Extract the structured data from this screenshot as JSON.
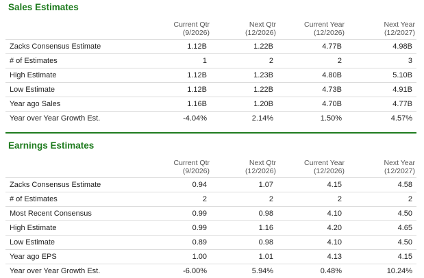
{
  "sales": {
    "title": "Sales Estimates",
    "columns": [
      {
        "line1": "Current Qtr",
        "line2": "(9/2026)"
      },
      {
        "line1": "Next Qtr",
        "line2": "(12/2026)"
      },
      {
        "line1": "Current Year",
        "line2": "(12/2026)"
      },
      {
        "line1": "Next Year",
        "line2": "(12/2027)"
      }
    ],
    "rows": [
      {
        "label": "Zacks Consensus Estimate",
        "values": [
          "1.12B",
          "1.22B",
          "4.77B",
          "4.98B"
        ]
      },
      {
        "label": "# of Estimates",
        "values": [
          "1",
          "2",
          "2",
          "3"
        ]
      },
      {
        "label": "High Estimate",
        "values": [
          "1.12B",
          "1.23B",
          "4.80B",
          "5.10B"
        ]
      },
      {
        "label": "Low Estimate",
        "values": [
          "1.12B",
          "1.22B",
          "4.73B",
          "4.91B"
        ]
      },
      {
        "label": "Year ago Sales",
        "values": [
          "1.16B",
          "1.20B",
          "4.70B",
          "4.77B"
        ]
      },
      {
        "label": "Year over Year Growth Est.",
        "values": [
          "-4.04%",
          "2.14%",
          "1.50%",
          "4.57%"
        ]
      }
    ]
  },
  "earnings": {
    "title": "Earnings Estimates",
    "columns": [
      {
        "line1": "Current Qtr",
        "line2": "(9/2026)"
      },
      {
        "line1": "Next Qtr",
        "line2": "(12/2026)"
      },
      {
        "line1": "Current Year",
        "line2": "(12/2026)"
      },
      {
        "line1": "Next Year",
        "line2": "(12/2027)"
      }
    ],
    "rows": [
      {
        "label": "Zacks Consensus Estimate",
        "values": [
          "0.94",
          "1.07",
          "4.15",
          "4.58"
        ]
      },
      {
        "label": "# of Estimates",
        "values": [
          "2",
          "2",
          "2",
          "2"
        ]
      },
      {
        "label": "Most Recent Consensus",
        "values": [
          "0.99",
          "0.98",
          "4.10",
          "4.50"
        ]
      },
      {
        "label": "High Estimate",
        "values": [
          "0.99",
          "1.16",
          "4.20",
          "4.65"
        ]
      },
      {
        "label": "Low Estimate",
        "values": [
          "0.89",
          "0.98",
          "4.10",
          "4.50"
        ]
      },
      {
        "label": "Year ago EPS",
        "values": [
          "1.00",
          "1.01",
          "4.13",
          "4.15"
        ]
      },
      {
        "label": "Year over Year Growth Est.",
        "values": [
          "-6.00%",
          "5.94%",
          "0.48%",
          "10.24%"
        ]
      }
    ]
  },
  "colors": {
    "title_green": "#1e7b1e",
    "divider_green": "#1e7b1e",
    "row_border": "#dcdcdc"
  }
}
